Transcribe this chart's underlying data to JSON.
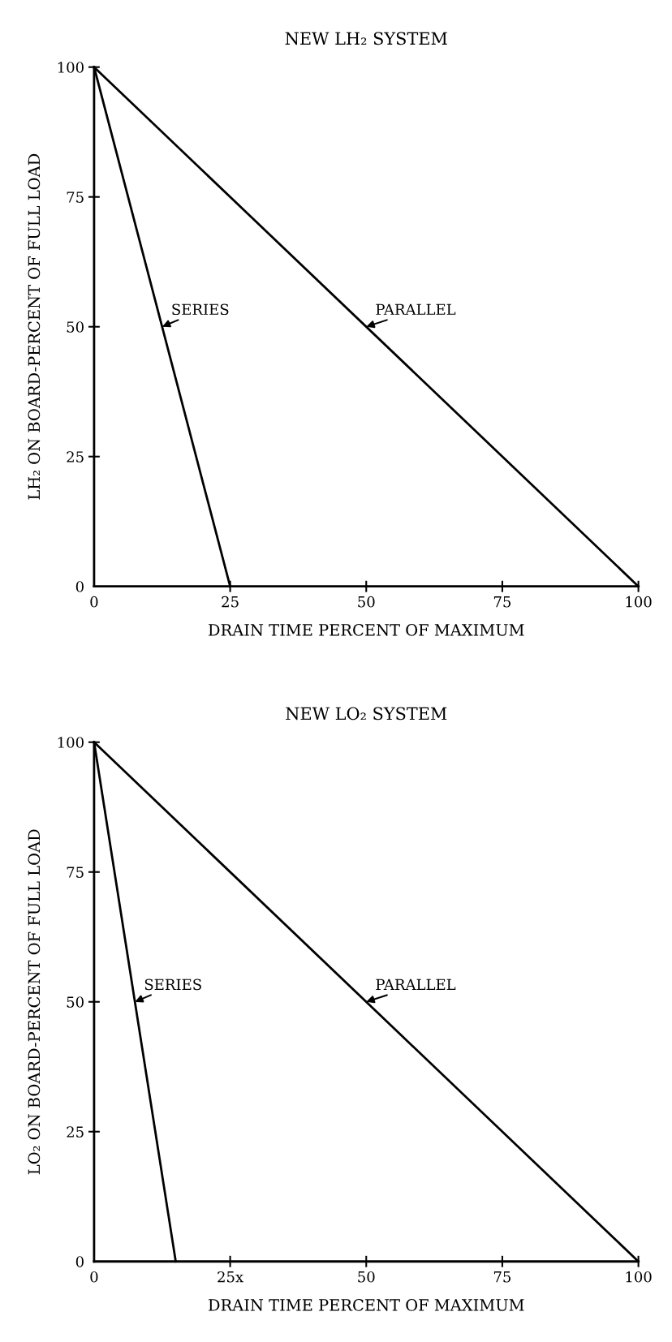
{
  "chart_data": [
    {
      "type": "line",
      "title": "NEW LH₂ SYSTEM",
      "xlabel": "DRAIN TIME PERCENT OF MAXIMUM",
      "ylabel": "LH₂ ON BOARD-PERCENT OF FULL LOAD",
      "xlim": [
        0,
        100
      ],
      "ylim": [
        0,
        100
      ],
      "xticks": [
        0,
        25,
        50,
        75,
        100
      ],
      "yticks": [
        0,
        25,
        50,
        75,
        100
      ],
      "grid": false,
      "legend": false,
      "series": [
        {
          "name": "SERIES",
          "color": "#000000",
          "x": [
            0,
            25
          ],
          "values": [
            100,
            0
          ]
        },
        {
          "name": "PARALLEL",
          "color": "#000000",
          "x": [
            0,
            100
          ],
          "values": [
            100,
            0
          ]
        }
      ]
    },
    {
      "type": "line",
      "title": "NEW LO₂ SYSTEM",
      "xlabel": "DRAIN TIME PERCENT OF MAXIMUM",
      "ylabel": "LO₂ ON BOARD-PERCENT OF FULL LOAD",
      "xlim": [
        0,
        100
      ],
      "ylim": [
        0,
        100
      ],
      "xticks": [
        0,
        {
          "value": 25,
          "label": "25x"
        },
        50,
        75,
        100
      ],
      "yticks": [
        0,
        25,
        50,
        75,
        100
      ],
      "grid": false,
      "legend": false,
      "series": [
        {
          "name": "SERIES",
          "color": "#000000",
          "x": [
            0,
            15
          ],
          "values": [
            100,
            0
          ]
        },
        {
          "name": "PARALLEL",
          "color": "#000000",
          "x": [
            0,
            100
          ],
          "values": [
            100,
            0
          ]
        }
      ]
    }
  ]
}
